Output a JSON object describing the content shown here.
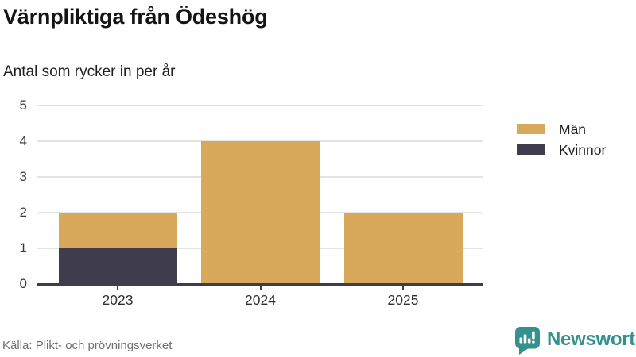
{
  "title": "Värnpliktiga från Ödeshög",
  "subtitle": "Antal som rycker in per år",
  "source": "Källa: Plikt- och prövningsverket",
  "brand": {
    "name": "Newsworthy",
    "color": "#35918F"
  },
  "colors": {
    "men": "#D8A95A",
    "women": "#3F3C4E",
    "grid": "#E3E3E3",
    "axis": "#3F3C4E"
  },
  "legend": {
    "items": [
      {
        "label": "Män",
        "color": "#D8A95A"
      },
      {
        "label": "Kvinnor",
        "color": "#3F3C4E"
      }
    ]
  },
  "chart_data": {
    "type": "bar",
    "stacked": true,
    "title": "Värnpliktiga från Ödeshög",
    "subtitle": "Antal som rycker in per år",
    "categories": [
      "2023",
      "2024",
      "2025"
    ],
    "series": [
      {
        "name": "Män",
        "color": "#D8A95A",
        "values": [
          1,
          4,
          2
        ]
      },
      {
        "name": "Kvinnor",
        "color": "#3F3C4E",
        "values": [
          1,
          0,
          0
        ]
      }
    ],
    "stack_bottom_to_top": [
      "Kvinnor",
      "Män"
    ],
    "totals": [
      2,
      4,
      2
    ],
    "xlabel": "",
    "ylabel": "",
    "ylim": [
      0,
      5
    ],
    "yticks": [
      0,
      1,
      2,
      3,
      4,
      5
    ],
    "grid": true,
    "legend_position": "right"
  }
}
